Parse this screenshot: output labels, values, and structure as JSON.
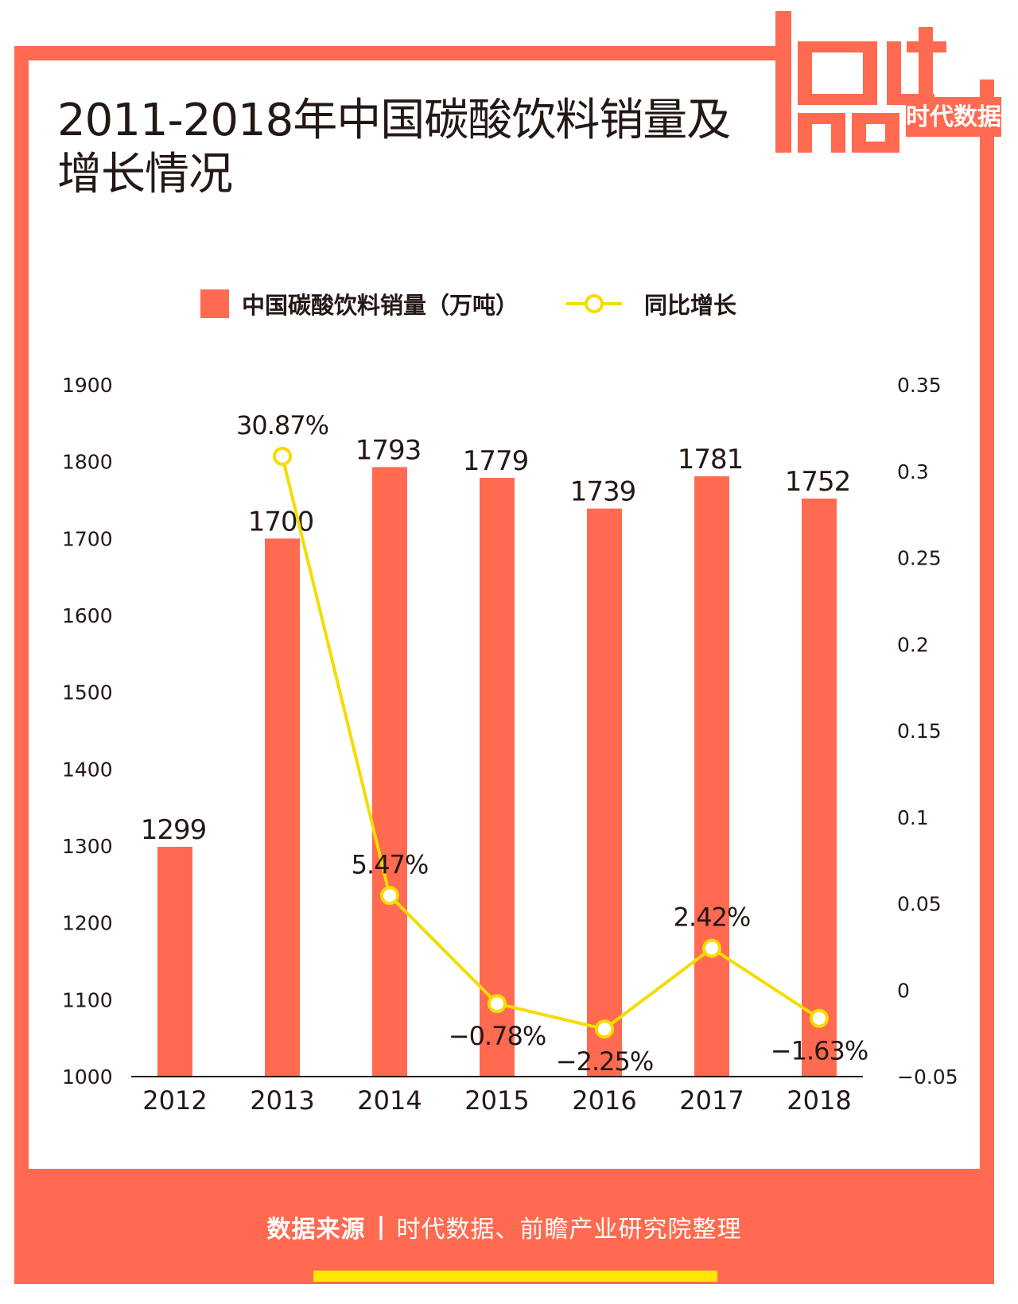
{
  "title": "2011-2018年中国碳酸饮料销量及增长情况",
  "logo": {
    "text": "data",
    "text2": "god",
    "brand": "时代数据"
  },
  "legend": {
    "bar_label": "中国碳酸饮料销量（万吨）",
    "line_label": "同比增长"
  },
  "footer": {
    "source_label": "数据来源",
    "separator": "|",
    "source_text": "时代数据、前瞻产业研究院整理"
  },
  "colors": {
    "bar": "#ff6a50",
    "line": "#f5dc00",
    "frame": "#ff6a50",
    "text": "#231815"
  },
  "chart_data": {
    "type": "bar",
    "title": "2011-2018年中国碳酸饮料销量及增长情况",
    "categories": [
      "2012",
      "2013",
      "2014",
      "2015",
      "2016",
      "2017",
      "2018"
    ],
    "series": [
      {
        "name": "中国碳酸饮料销量（万吨）",
        "type": "bar",
        "axis": "left",
        "values": [
          1299,
          1700,
          1793,
          1779,
          1739,
          1781,
          1752
        ],
        "labels": [
          "1299",
          "1700",
          "1793",
          "1779",
          "1739",
          "1781",
          "1752"
        ]
      },
      {
        "name": "同比增长",
        "type": "line",
        "axis": "right",
        "values": [
          null,
          0.3087,
          0.0547,
          -0.0078,
          -0.0225,
          0.0242,
          -0.0163
        ],
        "labels": [
          "",
          "30.87%",
          "5.47%",
          "−0.78%",
          "−2.25%",
          "2.42%",
          "−1.63%"
        ]
      }
    ],
    "y_left": {
      "range": [
        1000,
        1900
      ],
      "ticks": [
        "1000",
        "1100",
        "1200",
        "1300",
        "1400",
        "1500",
        "1600",
        "1700",
        "1800",
        "1900"
      ]
    },
    "y_right": {
      "range": [
        -0.05,
        0.35
      ],
      "ticks": [
        "−0.05",
        "0",
        "0.05",
        "0.1",
        "0.15",
        "0.2",
        "0.25",
        "0.3",
        "0.35"
      ]
    },
    "xlabel": "",
    "ylabel": ""
  }
}
